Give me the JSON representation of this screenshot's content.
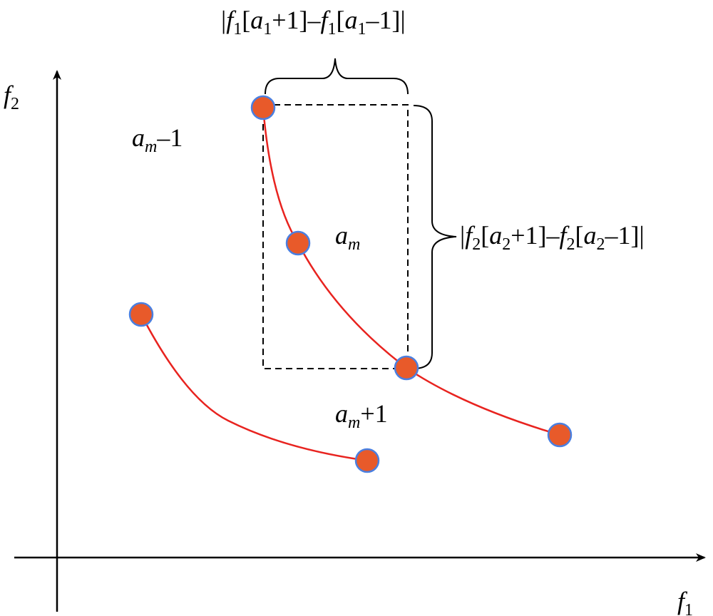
{
  "labels": {
    "y_axis": [
      {
        "text": "f",
        "style": "italic"
      },
      {
        "text": "2",
        "style": "sub"
      }
    ],
    "x_axis": [
      {
        "text": "f",
        "style": "italic"
      },
      {
        "text": "1",
        "style": "sub"
      }
    ],
    "previous": [
      {
        "text": "a",
        "style": "italic"
      },
      {
        "text": "m",
        "style": "italic-sub"
      },
      {
        "text": "–1",
        "style": "plain"
      }
    ],
    "current": [
      {
        "text": "a",
        "style": "italic"
      },
      {
        "text": "m",
        "style": "italic-sub"
      }
    ],
    "next": [
      {
        "text": "a",
        "style": "italic"
      },
      {
        "text": "m",
        "style": "italic-sub"
      },
      {
        "text": "+1",
        "style": "plain"
      }
    ],
    "f1_distance": [
      {
        "text": "|",
        "style": "plain"
      },
      {
        "text": "f",
        "style": "italic"
      },
      {
        "text": "1",
        "style": "sub"
      },
      {
        "text": "[",
        "style": "plain"
      },
      {
        "text": "a",
        "style": "italic"
      },
      {
        "text": "1",
        "style": "sub"
      },
      {
        "text": "+1]–",
        "style": "plain"
      },
      {
        "text": "f",
        "style": "italic"
      },
      {
        "text": "1",
        "style": "sub"
      },
      {
        "text": "[",
        "style": "plain"
      },
      {
        "text": "a",
        "style": "italic"
      },
      {
        "text": "1",
        "style": "sub"
      },
      {
        "text": "–1]|",
        "style": "plain"
      }
    ],
    "f2_distance": [
      {
        "text": "|",
        "style": "plain"
      },
      {
        "text": "f",
        "style": "italic"
      },
      {
        "text": "2",
        "style": "sub"
      },
      {
        "text": "[",
        "style": "plain"
      },
      {
        "text": "a",
        "style": "italic"
      },
      {
        "text": "2",
        "style": "sub"
      },
      {
        "text": "+1]–",
        "style": "plain"
      },
      {
        "text": "f",
        "style": "italic"
      },
      {
        "text": "2",
        "style": "sub"
      },
      {
        "text": "[",
        "style": "plain"
      },
      {
        "text": "a",
        "style": "italic"
      },
      {
        "text": "2",
        "style": "sub"
      },
      {
        "text": "–1]|",
        "style": "plain"
      }
    ]
  }
}
